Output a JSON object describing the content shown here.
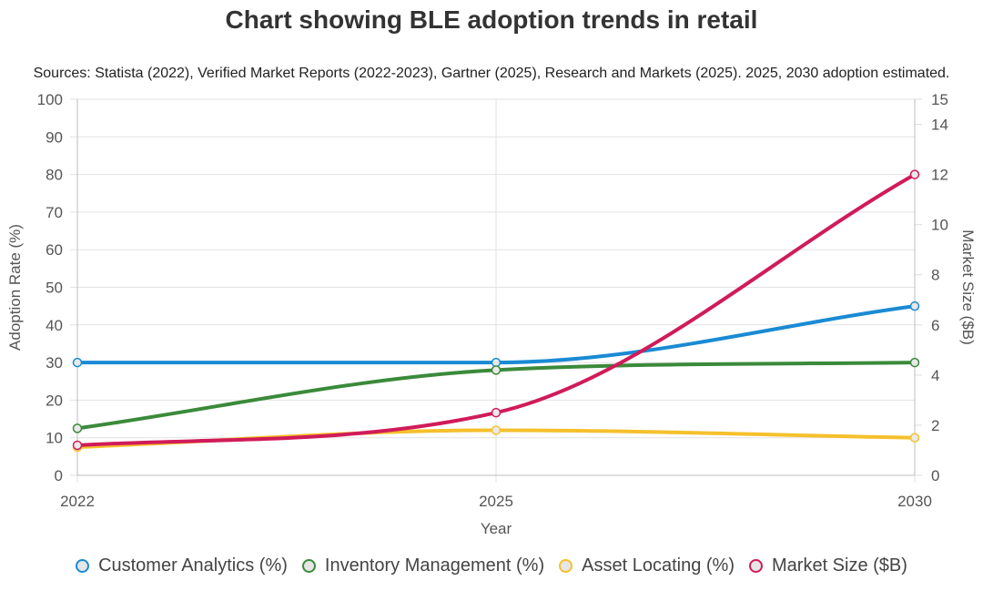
{
  "chart_data": {
    "type": "line",
    "title": "Chart showing BLE adoption trends in retail",
    "subtitle": "Sources: Statista (2022), Verified Market Reports (2022-2023), Gartner (2025), Research and Markets (2025). 2025, 2030 adoption estimated.",
    "xlabel": "Year",
    "ylabel": "Adoption Rate (%)",
    "y2label": "Market Size ($B)",
    "categories": [
      "2022",
      "2025",
      "2030"
    ],
    "ylim": [
      0,
      100
    ],
    "y2lim": [
      0,
      15
    ],
    "yticks": [
      0,
      10,
      20,
      30,
      40,
      50,
      60,
      70,
      80,
      90,
      100
    ],
    "y2ticks": [
      0,
      2,
      4,
      6,
      8,
      10,
      12,
      14,
      15
    ],
    "grid": true,
    "legend_position": "bottom",
    "series": [
      {
        "name": "Customer Analytics (%)",
        "values": [
          30,
          30,
          45
        ],
        "axis": "left",
        "color": "#1a8ad4"
      },
      {
        "name": "Inventory Management (%)",
        "values": [
          12.5,
          28,
          30
        ],
        "axis": "left",
        "color": "#3a8a3a"
      },
      {
        "name": "Asset Locating (%)",
        "values": [
          7.5,
          12,
          10
        ],
        "axis": "left",
        "color": "#f5c02c"
      },
      {
        "name": "Market Size ($B)",
        "values": [
          1.2,
          2.5,
          12
        ],
        "axis": "right",
        "color": "#d01b5a"
      }
    ]
  }
}
